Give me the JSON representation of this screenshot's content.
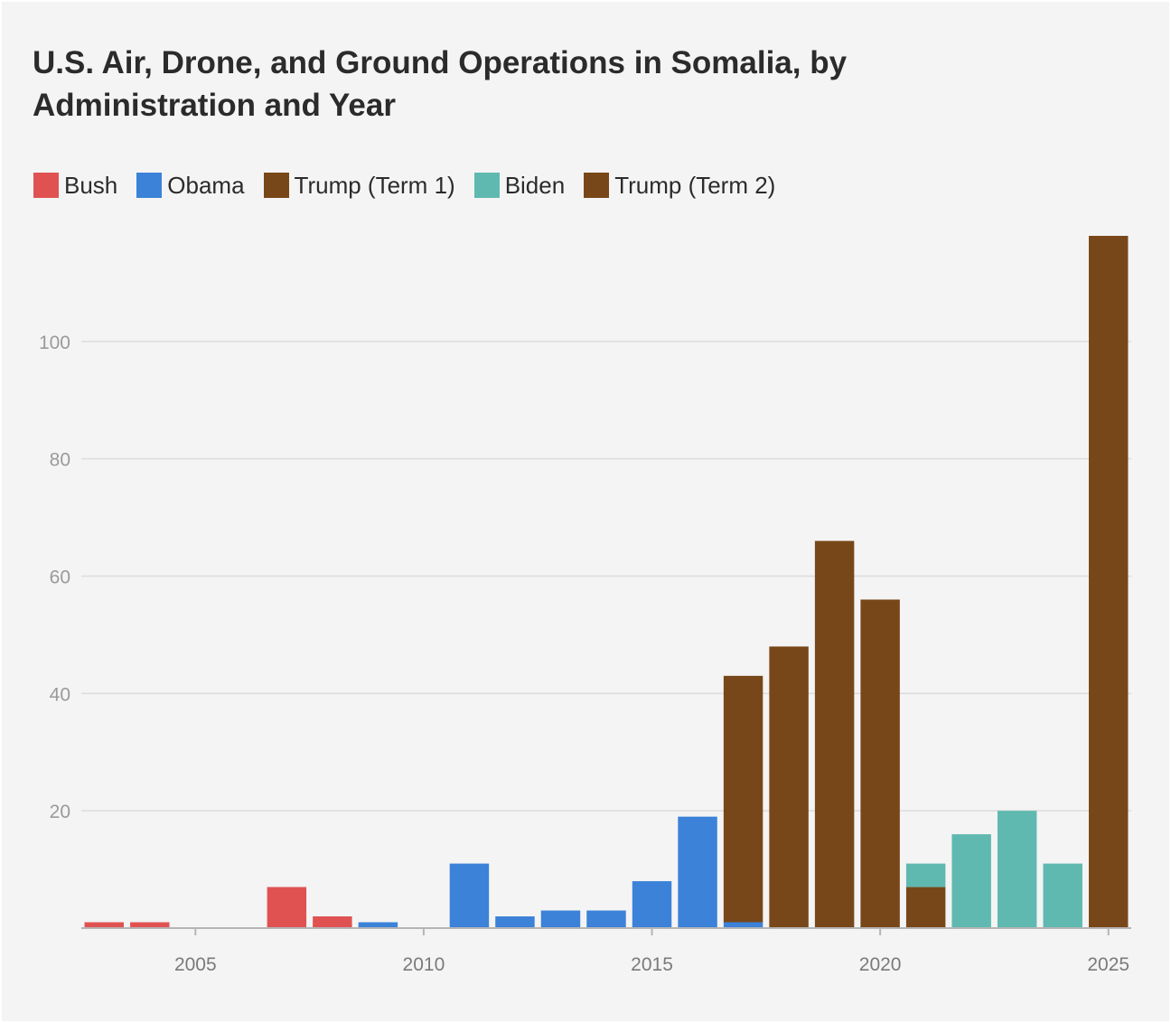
{
  "chart_data": {
    "type": "bar",
    "title": "U.S. Air, Drone, and Ground Operations in Somalia, by Administration and Year",
    "xlabel": "",
    "ylabel": "",
    "xlim": [
      2002.5,
      2025.5
    ],
    "ylim": [
      0,
      120
    ],
    "y_ticks": [
      20,
      40,
      60,
      80,
      100
    ],
    "x_ticks": [
      2005,
      2010,
      2015,
      2020,
      2025
    ],
    "grid": true,
    "legend_position": "top-left",
    "series": [
      {
        "name": "Bush",
        "color": "#e05252",
        "points": [
          {
            "x": 2003,
            "y": 1
          },
          {
            "x": 2004,
            "y": 1
          },
          {
            "x": 2007,
            "y": 7
          },
          {
            "x": 2008,
            "y": 2
          }
        ]
      },
      {
        "name": "Obama",
        "color": "#3b82d8",
        "points": [
          {
            "x": 2009,
            "y": 1
          },
          {
            "x": 2011,
            "y": 11
          },
          {
            "x": 2012,
            "y": 2
          },
          {
            "x": 2013,
            "y": 3
          },
          {
            "x": 2014,
            "y": 3
          },
          {
            "x": 2015,
            "y": 8
          },
          {
            "x": 2016,
            "y": 19
          },
          {
            "x": 2017,
            "y": 1
          }
        ]
      },
      {
        "name": "Trump (Term 1)",
        "color": "#784719",
        "points": [
          {
            "x": 2017,
            "y": 42
          },
          {
            "x": 2018,
            "y": 48
          },
          {
            "x": 2019,
            "y": 66
          },
          {
            "x": 2020,
            "y": 56
          },
          {
            "x": 2021,
            "y": 7
          }
        ]
      },
      {
        "name": "Biden",
        "color": "#5fb9b0",
        "points": [
          {
            "x": 2021,
            "y": 4
          },
          {
            "x": 2022,
            "y": 16
          },
          {
            "x": 2023,
            "y": 20
          },
          {
            "x": 2024,
            "y": 11
          }
        ]
      },
      {
        "name": "Trump (Term 2)",
        "color": "#784719",
        "points": [
          {
            "x": 2025,
            "y": 118
          }
        ]
      }
    ]
  }
}
